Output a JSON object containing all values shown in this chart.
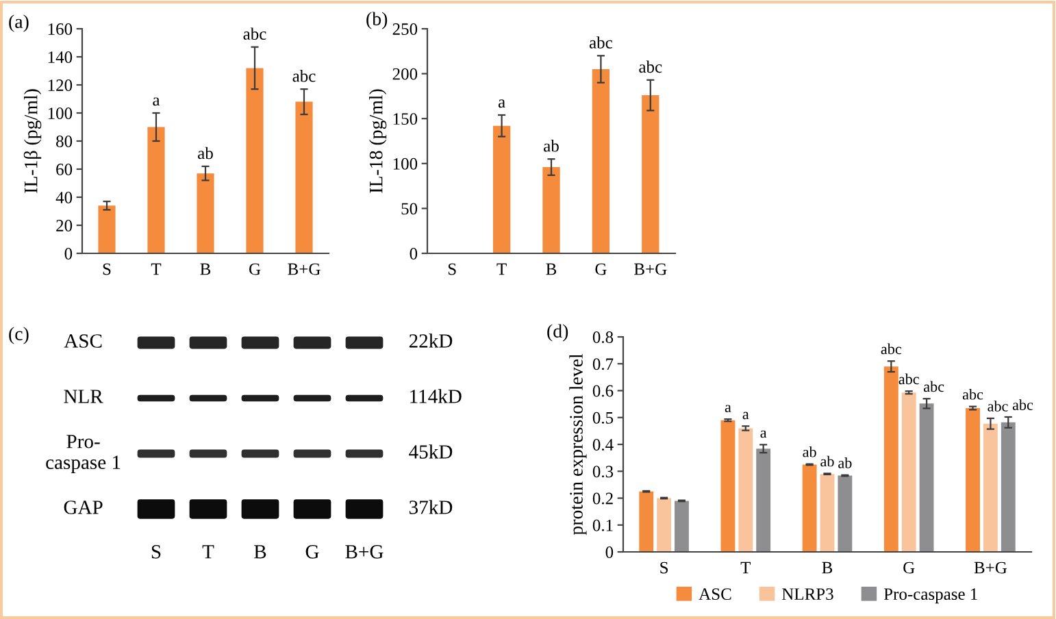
{
  "chart_data": [
    {
      "type": "bar",
      "title": "(a)",
      "ylabel": "IL-1β (pg/ml)",
      "categories": [
        "S",
        "T",
        "B",
        "G",
        "B+G"
      ],
      "values": [
        34,
        90,
        57,
        132,
        108
      ],
      "errors": [
        3,
        10,
        5,
        15,
        9
      ],
      "value_labels": [
        null,
        "a",
        "ab",
        "abc",
        "abc"
      ],
      "color": "#f58b3d",
      "ylim": [
        0,
        160
      ],
      "yticks": [
        0,
        20,
        40,
        60,
        80,
        100,
        120,
        140,
        160
      ]
    },
    {
      "type": "bar",
      "title": "(b)",
      "ylabel": "IL-18 (pg/ml)",
      "categories": [
        "S",
        "T",
        "B",
        "G",
        "B+G"
      ],
      "values": [
        null,
        142,
        96,
        205,
        176
      ],
      "errors": [
        null,
        12,
        9,
        15,
        17
      ],
      "value_labels": [
        null,
        "a",
        "ab",
        "abc",
        "abc"
      ],
      "color": "#f58b3d",
      "ylim": [
        0,
        250
      ],
      "yticks": [
        0,
        50,
        100,
        150,
        200,
        250
      ]
    },
    {
      "type": "other",
      "title": "(c)",
      "categories": [
        "S",
        "T",
        "B",
        "G",
        "B+G"
      ],
      "y_categories": [
        "ASC",
        "NLR",
        "Pro-\ncaspase 1",
        "GAP"
      ],
      "y2_categories": [
        "22kD",
        "114kD",
        "45kD",
        "37kD"
      ]
    },
    {
      "type": "bar",
      "title": "(d)",
      "ylabel": "protein expression level",
      "categories": [
        "S",
        "T",
        "B",
        "G",
        "B+G"
      ],
      "series": [
        {
          "name": "ASC",
          "color": "#f58b3d",
          "values": [
            0.225,
            0.49,
            0.325,
            0.69,
            0.535
          ],
          "errors": [
            0.002,
            0.004,
            0.002,
            0.02,
            0.006
          ],
          "value_labels": [
            null,
            "a",
            "ab",
            "abc",
            "abc"
          ]
        },
        {
          "name": "NLRP3",
          "color": "#f9c49c",
          "values": [
            0.2,
            0.46,
            0.29,
            0.593,
            0.477
          ],
          "errors": [
            0.002,
            0.008,
            0.002,
            0.005,
            0.02
          ],
          "value_labels": [
            null,
            "a",
            "ab",
            "abc",
            "abc"
          ]
        },
        {
          "name": "Pro-caspase 1",
          "color": "#8e8e90",
          "values": [
            0.19,
            0.384,
            0.284,
            0.552,
            0.482
          ],
          "errors": [
            0.002,
            0.015,
            0.002,
            0.018,
            0.02
          ],
          "value_labels": [
            null,
            "a",
            "ab",
            "abc",
            "abc"
          ]
        }
      ],
      "ylim": [
        0,
        0.8
      ],
      "yticks": [
        0,
        0.1,
        0.2,
        0.3,
        0.4,
        0.5,
        0.6,
        0.7,
        0.8
      ],
      "legend": "bottom"
    }
  ]
}
